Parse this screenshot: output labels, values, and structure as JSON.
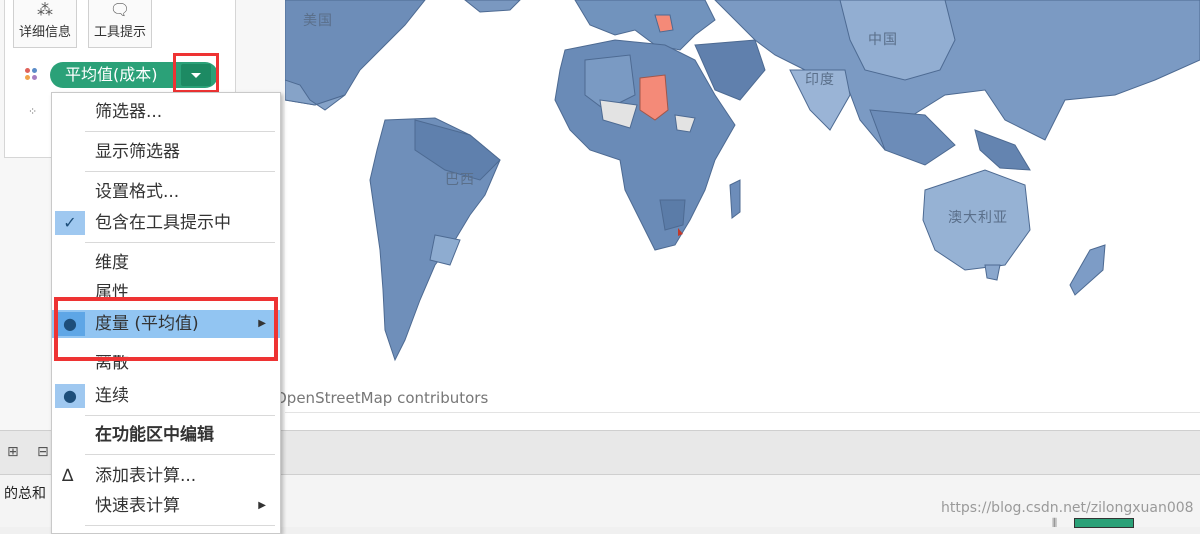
{
  "marks": {
    "detail_label": "详细信息",
    "tooltip_label": "工具提示",
    "pill_label": "平均值(成本)"
  },
  "map": {
    "labels": {
      "usa": "美国",
      "china": "中国",
      "india": "印度",
      "brazil": "巴西",
      "australia": "澳大利亚"
    },
    "attribution": "OpenStreetMap contributors",
    "colors": {
      "ocean": "#ffffff",
      "land_base": "#7090b8",
      "land_dark": "#5a7aa6",
      "land_light": "#a7bfdb",
      "highlight": "#f48a78",
      "no_data": "#e6e6e6"
    }
  },
  "menu": {
    "items": [
      {
        "label": "筛选器..."
      },
      {
        "label": "显示筛选器"
      },
      {
        "label": "设置格式..."
      },
      {
        "label": "包含在工具提示中",
        "checked": true
      },
      {
        "label": "维度"
      },
      {
        "label": "属性"
      },
      {
        "label": "度量 (平均值)",
        "selected": true,
        "submenu": true
      },
      {
        "label": "离散"
      },
      {
        "label": "连续",
        "selected": true
      },
      {
        "label": "在功能区中编辑",
        "bold": true
      },
      {
        "label": "添加表计算...",
        "icon": "delta-icon"
      },
      {
        "label": "快速表计算",
        "submenu": true
      }
    ]
  },
  "footer": {
    "sum_label": "的总和",
    "watermark": "https://blog.csdn.net/zilongxuan008"
  }
}
